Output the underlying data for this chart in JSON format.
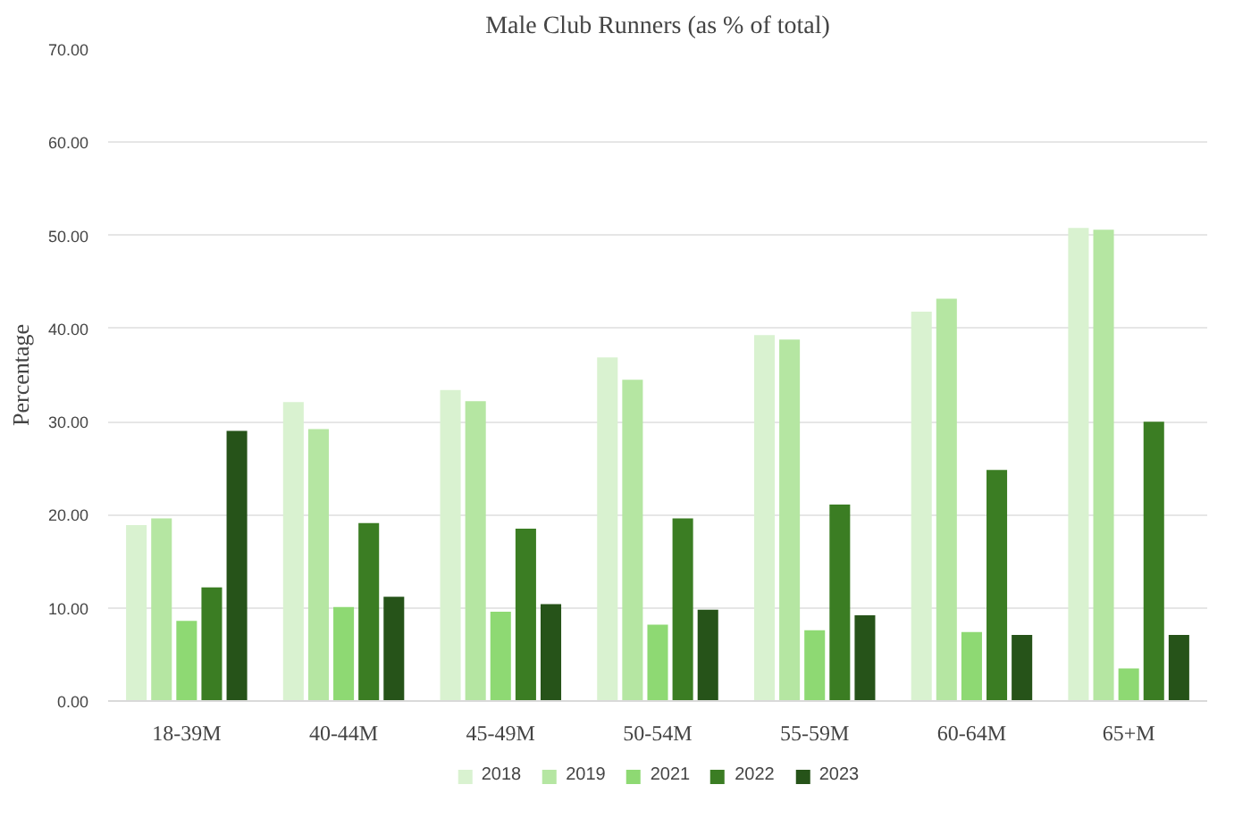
{
  "chart_data": {
    "type": "bar",
    "title": "Male Club Runners (as % of total)",
    "ylabel": "Percentage",
    "categories": [
      "18-39M",
      "40-44M",
      "45-49M",
      "50-54M",
      "55-59M",
      "60-64M",
      "65+M"
    ],
    "series": [
      {
        "name": "2018",
        "color": "#d9f2d0",
        "values": [
          18.9,
          32.1,
          33.4,
          36.9,
          39.3,
          41.8,
          50.8
        ]
      },
      {
        "name": "2019",
        "color": "#b5e6a2",
        "values": [
          19.6,
          29.2,
          32.2,
          34.5,
          38.8,
          43.2,
          50.6
        ]
      },
      {
        "name": "2021",
        "color": "#8ed973",
        "values": [
          8.6,
          10.1,
          9.6,
          8.2,
          7.6,
          7.4,
          3.5
        ]
      },
      {
        "name": "2022",
        "color": "#3b7d23",
        "values": [
          12.2,
          19.1,
          18.5,
          19.6,
          21.1,
          24.8,
          30.0
        ]
      },
      {
        "name": "2023",
        "color": "#265319",
        "values": [
          29.0,
          11.2,
          10.4,
          9.8,
          9.2,
          7.1,
          7.1
        ]
      }
    ],
    "ylim": [
      0,
      70
    ],
    "yticks": [
      {
        "value": 0,
        "label": "0.00"
      },
      {
        "value": 10,
        "label": "10.00"
      },
      {
        "value": 20,
        "label": "20.00"
      },
      {
        "value": 30,
        "label": "30.00"
      },
      {
        "value": 40,
        "label": "40.00"
      },
      {
        "value": 50,
        "label": "50.00"
      },
      {
        "value": 60,
        "label": "60.00"
      },
      {
        "value": 70,
        "label": "70.00"
      }
    ],
    "grid": "y",
    "legend": "bottom"
  }
}
